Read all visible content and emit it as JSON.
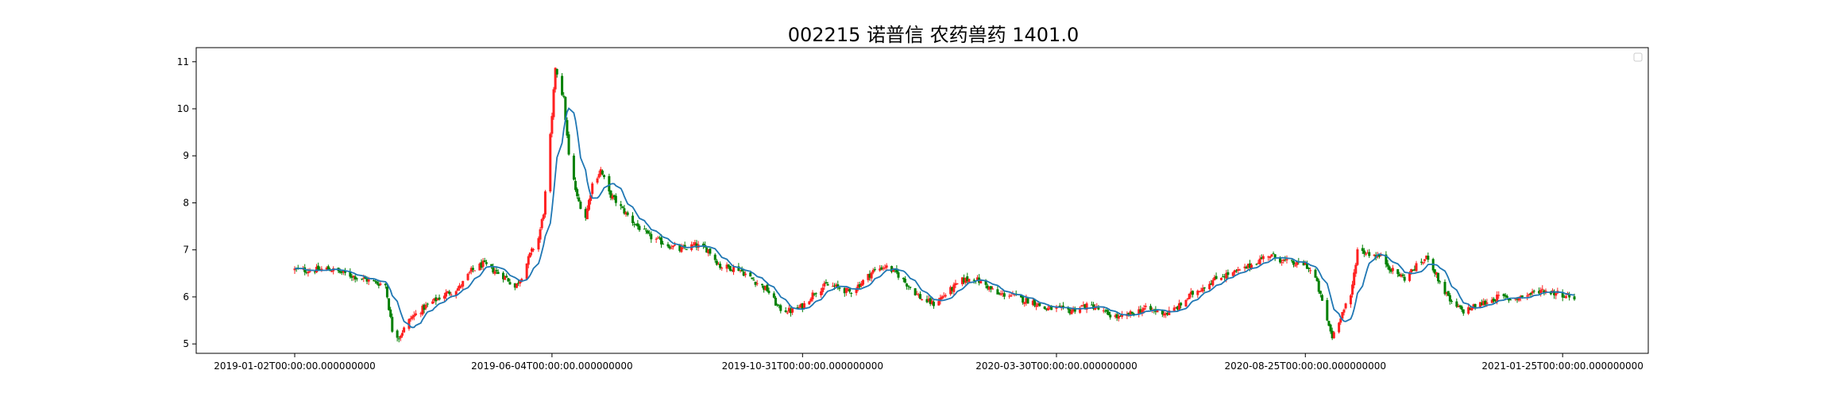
{
  "chart_data": {
    "type": "candlestick",
    "title": "002215 诺普信 农药兽药 1401.0",
    "xlabel": "",
    "ylabel": "",
    "x_range": [
      "2019-01-02",
      "2021-02-01"
    ],
    "ylim": [
      4.8,
      11.3
    ],
    "y_ticks": [
      5,
      6,
      7,
      8,
      9,
      10,
      11
    ],
    "x_ticks": [
      {
        "date": "2019-01-02",
        "label": "2019-01-02T00:00:00.000000000"
      },
      {
        "date": "2019-06-04",
        "label": "2019-06-04T00:00:00.000000000"
      },
      {
        "date": "2019-10-31",
        "label": "2019-10-31T00:00:00.000000000"
      },
      {
        "date": "2020-03-30",
        "label": "2020-03-30T00:00:00.000000000"
      },
      {
        "date": "2020-08-25",
        "label": "2020-08-25T00:00:00.000000000"
      },
      {
        "date": "2021-01-25",
        "label": "2021-01-25T00:00:00.000000000"
      }
    ],
    "up_color": "#ff2020",
    "down_color": "#008000",
    "ma_color": "#1f77b4",
    "legend": {
      "position": "top-right",
      "entries": []
    },
    "grid": false,
    "price_series": {
      "name": "close",
      "points": [
        [
          "2019-01-02",
          6.58
        ],
        [
          "2019-01-11",
          6.56
        ],
        [
          "2019-01-22",
          6.6
        ],
        [
          "2019-01-31",
          6.5
        ],
        [
          "2019-02-15",
          6.35
        ],
        [
          "2019-02-25",
          6.25
        ],
        [
          "2019-03-01",
          5.3
        ],
        [
          "2019-03-05",
          5.15
        ],
        [
          "2019-03-12",
          5.55
        ],
        [
          "2019-03-21",
          5.8
        ],
        [
          "2019-04-01",
          6.05
        ],
        [
          "2019-04-10",
          6.2
        ],
        [
          "2019-04-17",
          6.55
        ],
        [
          "2019-04-24",
          6.7
        ],
        [
          "2019-05-01",
          6.55
        ],
        [
          "2019-05-08",
          6.4
        ],
        [
          "2019-05-13",
          6.2
        ],
        [
          "2019-05-17",
          6.45
        ],
        [
          "2019-05-22",
          6.9
        ],
        [
          "2019-05-27",
          7.25
        ],
        [
          "2019-05-30",
          7.8
        ],
        [
          "2019-06-04",
          9.8
        ],
        [
          "2019-06-06",
          10.9
        ],
        [
          "2019-06-11",
          10.2
        ],
        [
          "2019-06-14",
          9.0
        ],
        [
          "2019-06-19",
          8.1
        ],
        [
          "2019-06-24",
          7.7
        ],
        [
          "2019-06-28",
          8.4
        ],
        [
          "2019-07-03",
          8.7
        ],
        [
          "2019-07-08",
          8.2
        ],
        [
          "2019-07-15",
          7.9
        ],
        [
          "2019-07-22",
          7.6
        ],
        [
          "2019-07-31",
          7.3
        ],
        [
          "2019-08-09",
          7.15
        ],
        [
          "2019-08-19",
          7.0
        ],
        [
          "2019-08-28",
          7.1
        ],
        [
          "2019-09-05",
          7.0
        ],
        [
          "2019-09-12",
          6.65
        ],
        [
          "2019-09-23",
          6.6
        ],
        [
          "2019-09-30",
          6.4
        ],
        [
          "2019-10-10",
          6.15
        ],
        [
          "2019-10-17",
          5.75
        ],
        [
          "2019-10-24",
          5.7
        ],
        [
          "2019-10-31",
          5.8
        ],
        [
          "2019-11-07",
          6.1
        ],
        [
          "2019-11-14",
          6.25
        ],
        [
          "2019-11-21",
          6.2
        ],
        [
          "2019-11-28",
          6.1
        ],
        [
          "2019-12-05",
          6.3
        ],
        [
          "2019-12-12",
          6.55
        ],
        [
          "2019-12-19",
          6.65
        ],
        [
          "2019-12-26",
          6.5
        ],
        [
          "2020-01-03",
          6.2
        ],
        [
          "2020-01-10",
          5.95
        ],
        [
          "2020-01-17",
          5.85
        ],
        [
          "2020-01-22",
          6.0
        ],
        [
          "2020-02-03",
          6.35
        ],
        [
          "2020-02-10",
          6.4
        ],
        [
          "2020-02-17",
          6.25
        ],
        [
          "2020-02-24",
          6.05
        ],
        [
          "2020-03-02",
          6.05
        ],
        [
          "2020-03-09",
          5.95
        ],
        [
          "2020-03-16",
          5.9
        ],
        [
          "2020-03-23",
          5.75
        ],
        [
          "2020-03-30",
          5.75
        ],
        [
          "2020-04-07",
          5.7
        ],
        [
          "2020-04-14",
          5.8
        ],
        [
          "2020-04-21",
          5.8
        ],
        [
          "2020-04-28",
          5.65
        ],
        [
          "2020-05-07",
          5.55
        ],
        [
          "2020-05-14",
          5.65
        ],
        [
          "2020-05-21",
          5.75
        ],
        [
          "2020-05-28",
          5.7
        ],
        [
          "2020-06-04",
          5.65
        ],
        [
          "2020-06-11",
          5.8
        ],
        [
          "2020-06-18",
          6.05
        ],
        [
          "2020-06-29",
          6.3
        ],
        [
          "2020-07-06",
          6.45
        ],
        [
          "2020-07-13",
          6.5
        ],
        [
          "2020-07-20",
          6.6
        ],
        [
          "2020-07-27",
          6.75
        ],
        [
          "2020-08-03",
          6.9
        ],
        [
          "2020-08-10",
          6.8
        ],
        [
          "2020-08-17",
          6.7
        ],
        [
          "2020-08-25",
          6.7
        ],
        [
          "2020-08-31",
          6.4
        ],
        [
          "2020-09-07",
          5.5
        ],
        [
          "2020-09-10",
          5.15
        ],
        [
          "2020-09-15",
          5.6
        ],
        [
          "2020-09-21",
          6.0
        ],
        [
          "2020-09-25",
          7.0
        ],
        [
          "2020-10-09",
          6.85
        ],
        [
          "2020-10-16",
          6.55
        ],
        [
          "2020-10-23",
          6.4
        ],
        [
          "2020-10-30",
          6.65
        ],
        [
          "2020-11-06",
          6.85
        ],
        [
          "2020-11-13",
          6.3
        ],
        [
          "2020-11-20",
          5.85
        ],
        [
          "2020-11-27",
          5.7
        ],
        [
          "2020-12-04",
          5.8
        ],
        [
          "2020-12-11",
          5.9
        ],
        [
          "2020-12-18",
          6.0
        ],
        [
          "2020-12-25",
          5.95
        ],
        [
          "2021-01-05",
          6.05
        ],
        [
          "2021-01-12",
          6.15
        ],
        [
          "2021-01-19",
          6.1
        ],
        [
          "2021-01-26",
          6.05
        ],
        [
          "2021-02-01",
          6.0
        ]
      ]
    }
  }
}
